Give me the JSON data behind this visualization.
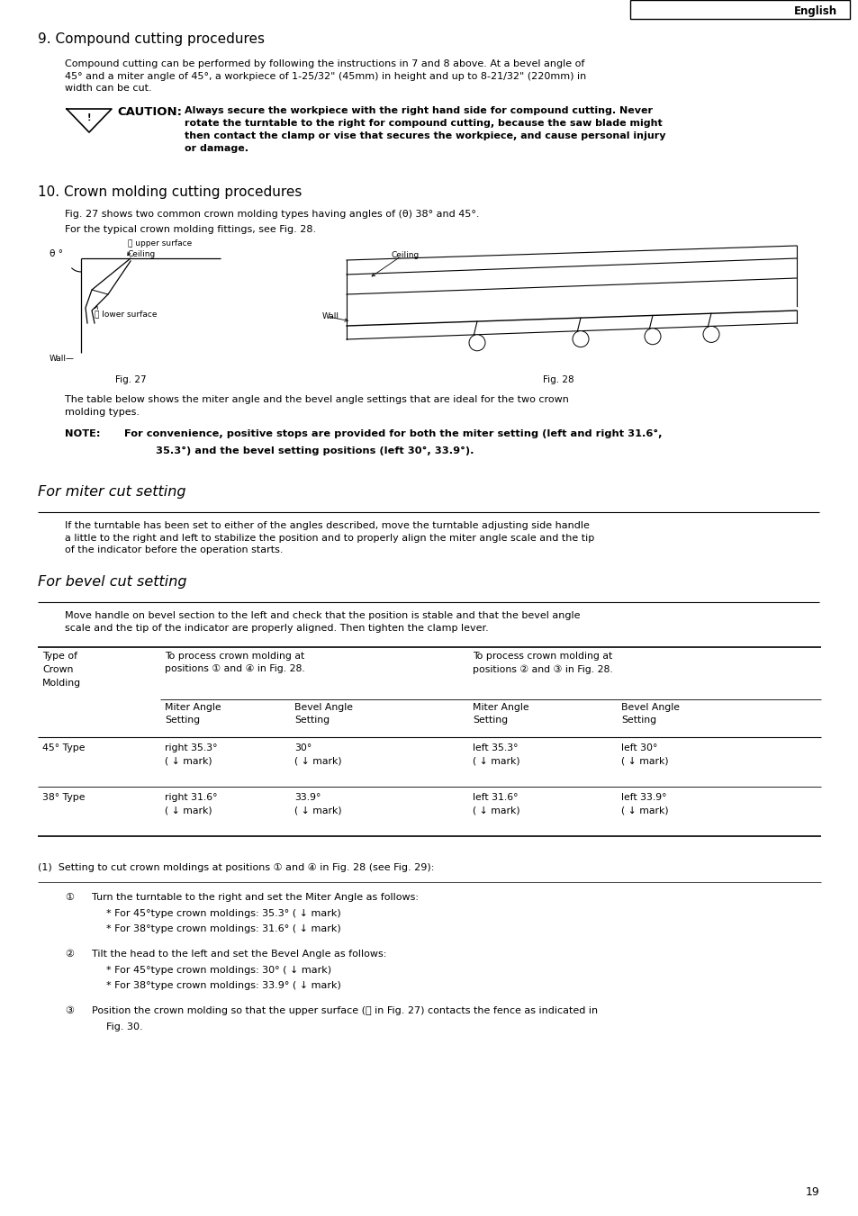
{
  "page_width": 9.54,
  "page_height": 13.51,
  "bg_color": "#ffffff",
  "header_text": "English",
  "section9_title": "9. Compound cutting procedures",
  "section9_body": "Compound cutting can be performed by following the instructions in 7 and 8 above. At a bevel angle of\n45° and a miter angle of 45°, a workpiece of 1-25/32\" (45mm) in height and up to 8-21/32\" (220mm) in\nwidth can be cut.",
  "caution_label": "⚠ CAUTION:",
  "caution_text": "Always secure the workpiece with the right hand side for compound cutting. Never\nrotate the turntable to the right for compound cutting, because the saw blade might\nthen contact the clamp or vise that secures the workpiece, and cause personal injury\nor damage.",
  "section10_title": "10. Crown molding cutting procedures",
  "section10_body1": "Fig. 27 shows two common crown molding types having angles of (θ) 38° and 45°.",
  "section10_body2": "For the typical crown molding fittings, see Fig. 28.",
  "fig27_caption": "Fig. 27",
  "fig28_caption": "Fig. 28",
  "table_intro": "The table below shows the miter angle and the bevel angle settings that are ideal for the two crown\nmolding types.",
  "note_label": "NOTE:",
  "note_text_part1": "For convenience, positive stops are provided for both the miter setting (left and right 31.6°,",
  "note_text_part2": "35.3°) and the bevel setting positions (left 30°, 33.9°).",
  "miter_heading": "For miter cut setting",
  "miter_body": "If the turntable has been set to either of the angles described, move the turntable adjusting side handle\na little to the right and left to stabilize the position and to properly align the miter angle scale and the tip\nof the indicator before the operation starts.",
  "bevel_heading": "For bevel cut setting",
  "bevel_body": "Move handle on bevel section to the left and check that the position is stable and that the bevel angle\nscale and the tip of the indicator are properly aligned. Then tighten the clamp lever.",
  "col1_header": "Type of\nCrown\nMolding",
  "col2_header": "To process crown molding at\npositions ① and ④ in Fig. 28.",
  "col3_header": "To process crown molding at\npositions ② and ③ in Fig. 28.",
  "subcol_ma": "Miter Angle\nSetting",
  "subcol_ba": "Bevel Angle\nSetting",
  "row1_type": "45° Type",
  "row1_ma1": "right 35.3°\n( ↓ mark)",
  "row1_ba1": "30°\n( ↓ mark)",
  "row1_ma2": "left 35.3°\n( ↓ mark)",
  "row1_ba2": "left 30°\n( ↓ mark)",
  "row2_type": "38° Type",
  "row2_ma1": "right 31.6°\n( ↓ mark)",
  "row2_ba1": "33.9°\n( ↓ mark)",
  "row2_ma2": "left 31.6°\n( ↓ mark)",
  "row2_ba2": "left 33.9°\n( ↓ mark)",
  "list1_header": "(1)  Setting to cut crown moldings at positions ① and ④ in Fig. 28 (see Fig. 29):",
  "list1_item1_num": "①",
  "list1_item1_line1": "Turn the turntable to the right and set the Miter Angle as follows:",
  "list1_item1_line2": "* For 45°type crown moldings: 35.3° ( ↓ mark)",
  "list1_item1_line3": "* For 38°type crown moldings: 31.6° ( ↓ mark)",
  "list1_item2_num": "②",
  "list1_item2_line1": "Tilt the head to the left and set the Bevel Angle as follows:",
  "list1_item2_line2": "* For 45°type crown moldings: 30° ( ↓ mark)",
  "list1_item2_line3": "* For 38°type crown moldings: 33.9° ( ↓ mark)",
  "list1_item3_num": "③",
  "list1_item3_line1": "Position the crown molding so that the upper surface (Ⓐ in Fig. 27) contacts the fence as indicated in",
  "list1_item3_line2": "Fig. 30.",
  "page_number": "19",
  "fig27_label_A": "Ⓐ upper surface",
  "fig27_label_A2": "Ceiling",
  "fig27_label_B": "Ⓑ lower surface",
  "fig27_wall": "Wall—",
  "fig27_theta": "θ °",
  "fig28_ceiling": "Ceiling",
  "fig28_wall": "Wall"
}
